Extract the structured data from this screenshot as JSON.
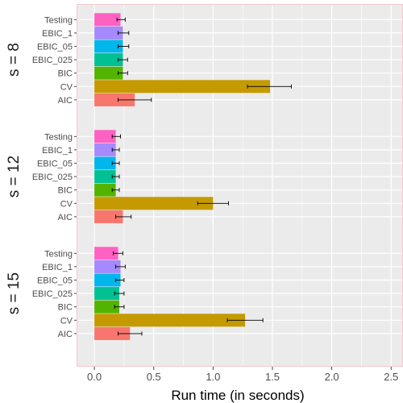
{
  "chart_data": {
    "type": "bar",
    "orientation": "horizontal",
    "xlabel": "Run time (in seconds)",
    "ylabel": "",
    "xlim": [
      -0.15,
      2.6
    ],
    "xticks": [
      0.0,
      0.5,
      1.0,
      1.5,
      2.0,
      2.5
    ],
    "xtick_labels": [
      "0.0",
      "0.5",
      "1.0",
      "1.5",
      "2.0",
      "2.5"
    ],
    "categories": [
      "Testing",
      "EBIC_1",
      "EBIC_05",
      "EBIC_025",
      "BIC",
      "CV",
      "AIC"
    ],
    "category_colors": {
      "Testing": "#FF61C3",
      "EBIC_1": "#A58AFF",
      "EBIC_05": "#00B6EB",
      "EBIC_025": "#00C094",
      "BIC": "#53B400",
      "CV": "#C49A00",
      "AIC": "#F8766D"
    },
    "panels": [
      {
        "label": "s = 8",
        "bars": [
          {
            "category": "Testing",
            "value": 0.22,
            "err": [
              0.19,
              0.26
            ]
          },
          {
            "category": "EBIC_1",
            "value": 0.24,
            "err": [
              0.2,
              0.29
            ]
          },
          {
            "category": "EBIC_05",
            "value": 0.24,
            "err": [
              0.2,
              0.29
            ]
          },
          {
            "category": "EBIC_025",
            "value": 0.24,
            "err": [
              0.2,
              0.28
            ]
          },
          {
            "category": "BIC",
            "value": 0.24,
            "err": [
              0.2,
              0.28
            ]
          },
          {
            "category": "CV",
            "value": 1.48,
            "err": [
              1.29,
              1.66
            ]
          },
          {
            "category": "AIC",
            "value": 0.34,
            "err": [
              0.2,
              0.48
            ]
          }
        ]
      },
      {
        "label": "s = 12",
        "bars": [
          {
            "category": "Testing",
            "value": 0.18,
            "err": [
              0.15,
              0.22
            ]
          },
          {
            "category": "EBIC_1",
            "value": 0.18,
            "err": [
              0.15,
              0.21
            ]
          },
          {
            "category": "EBIC_05",
            "value": 0.18,
            "err": [
              0.15,
              0.21
            ]
          },
          {
            "category": "EBIC_025",
            "value": 0.18,
            "err": [
              0.15,
              0.21
            ]
          },
          {
            "category": "BIC",
            "value": 0.18,
            "err": [
              0.15,
              0.21
            ]
          },
          {
            "category": "CV",
            "value": 1.0,
            "err": [
              0.87,
              1.13
            ]
          },
          {
            "category": "AIC",
            "value": 0.24,
            "err": [
              0.18,
              0.31
            ]
          }
        ]
      },
      {
        "label": "s = 15",
        "bars": [
          {
            "category": "Testing",
            "value": 0.2,
            "err": [
              0.16,
              0.24
            ]
          },
          {
            "category": "EBIC_1",
            "value": 0.22,
            "err": [
              0.18,
              0.26
            ]
          },
          {
            "category": "EBIC_05",
            "value": 0.22,
            "err": [
              0.18,
              0.25
            ]
          },
          {
            "category": "EBIC_025",
            "value": 0.21,
            "err": [
              0.17,
              0.25
            ]
          },
          {
            "category": "BIC",
            "value": 0.21,
            "err": [
              0.17,
              0.25
            ]
          },
          {
            "category": "CV",
            "value": 1.27,
            "err": [
              1.12,
              1.42
            ]
          },
          {
            "category": "AIC",
            "value": 0.3,
            "err": [
              0.2,
              0.4
            ]
          }
        ]
      }
    ],
    "grid": true,
    "legend": "none"
  }
}
